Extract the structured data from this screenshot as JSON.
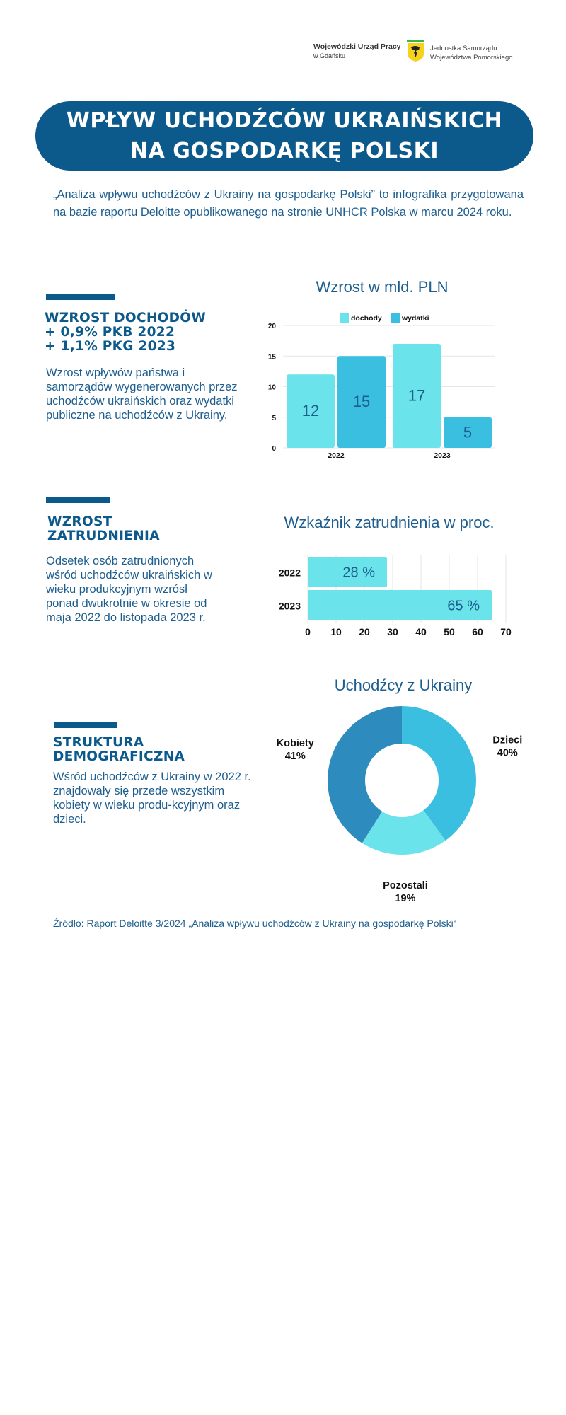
{
  "header": {
    "wup_line1": "Wojewódzki Urząd Pracy",
    "wup_line2": "w Gdańsku",
    "jst_line1": "Jednostka Samorządu",
    "jst_line2": "Województwa Pomorskiego",
    "title_line1": "WPŁYW UCHODŹCÓW UKRAIŃSKICH",
    "title_line2": "NA GOSPODARKĘ POLSKI"
  },
  "intro": "„Analiza wpływu uchodźców z Ukrainy na gospodarkę Polski” to infografika przygotowana na bazie raportu Deloitte opublikowanego na stronie UNHCR Polska w marcu 2024 roku.",
  "section1": {
    "head1": "WZROST DOCHODÓW",
    "head2": "+ 0,9% PKB 2022",
    "head3": "+ 1,1% PKG 2023",
    "text": "Wzrost wpływów państwa i samorządów wygenerowanych przez uchodźców ukraińskich oraz wydatki publiczne na uchodźców z Ukrainy."
  },
  "section2": {
    "head1": "WZROST",
    "head2": "ZATRUDNIENIA",
    "text": "Odsetek osób zatrudnionych wśród uchodźców ukraińskich w wieku produkcyjnym wzrósł ponad dwukrotnie w okresie od maja 2022 do listopada 2023 r."
  },
  "section3": {
    "head1": "STRUKTURA",
    "head2": "DEMOGRAFICZNA",
    "text": "Wśród uchodźców z Ukrainy w 2022 r. znajdowały się przede wszystkim kobiety w wieku produ-kcyjnym oraz dzieci."
  },
  "source": "Źródło: Raport Deloitte 3/2024 „Analiza wpływu uchodźców z Ukrainy na gospodarkę Polski“",
  "colors": {
    "primary": "#0c5a8c",
    "light": "#6ae3ea",
    "mid": "#3bbfe0",
    "dark": "#2e8bbd"
  },
  "chart_data": [
    {
      "type": "bar",
      "title": "Wzrost w mld. PLN",
      "categories": [
        "2022",
        "2023"
      ],
      "series": [
        {
          "name": "dochody",
          "values": [
            12,
            17
          ],
          "color": "#6ae3ea"
        },
        {
          "name": "wydatki",
          "values": [
            15,
            5
          ],
          "color": "#3bbfe0"
        }
      ],
      "ylim": [
        0,
        20
      ],
      "yticks": [
        "0",
        "5",
        "10",
        "15",
        "20"
      ],
      "legend": "top",
      "grid": true
    },
    {
      "type": "bar",
      "orientation": "horizontal",
      "title": "Wzkaźnik zatrudnienia w proc.",
      "categories": [
        "2022",
        "2023"
      ],
      "values": [
        28,
        65
      ],
      "value_labels": [
        "28 %",
        "65 %"
      ],
      "xlim": [
        0,
        70
      ],
      "xticks": [
        "0",
        "10",
        "20",
        "30",
        "40",
        "50",
        "60",
        "70"
      ],
      "color": "#6ae3ea",
      "grid": true
    },
    {
      "type": "pie",
      "donut": true,
      "title": "Uchodźcy z Ukrainy",
      "slices": [
        {
          "name": "Dzieci",
          "value": 40,
          "label": "40%",
          "color": "#3bbfe0"
        },
        {
          "name": "Pozostali",
          "value": 19,
          "label": "19%",
          "color": "#6ae3ea"
        },
        {
          "name": "Kobiety",
          "value": 41,
          "label": "41%",
          "color": "#2e8bbd"
        }
      ]
    }
  ]
}
